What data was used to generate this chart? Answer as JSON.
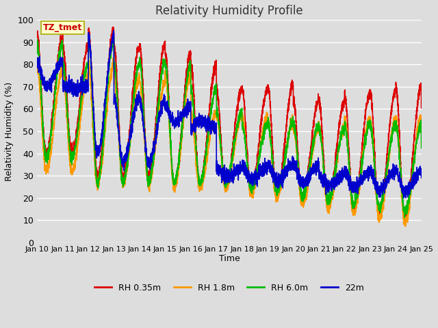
{
  "title": "Relativity Humidity Profile",
  "xlabel": "Time",
  "ylabel": "Relativity Humidity (%)",
  "ylim": [
    0,
    100
  ],
  "yticks": [
    0,
    10,
    20,
    30,
    40,
    50,
    60,
    70,
    80,
    90,
    100
  ],
  "x_labels": [
    "Jan 10",
    "Jan 11",
    "Jan 12",
    "Jan 13",
    "Jan 14",
    "Jan 15",
    "Jan 16",
    "Jan 17",
    "Jan 18",
    "Jan 19",
    "Jan 20",
    "Jan 21",
    "Jan 22",
    "Jan 23",
    "Jan 24",
    "Jan 25"
  ],
  "annotation_text": "TZ_tmet",
  "annotation_color": "#cc0000",
  "annotation_bg": "#ffffcc",
  "annotation_border": "#aaaa00",
  "series_colors": [
    "#dd0000",
    "#ff9900",
    "#00bb00",
    "#0000cc"
  ],
  "series_labels": [
    "RH 0.35m",
    "RH 1.8m",
    "RH 6.0m",
    "22m"
  ],
  "line_width": 1.2,
  "bg_color": "#dddddd",
  "plot_bg": "#dddddd",
  "grid_color": "#ffffff"
}
